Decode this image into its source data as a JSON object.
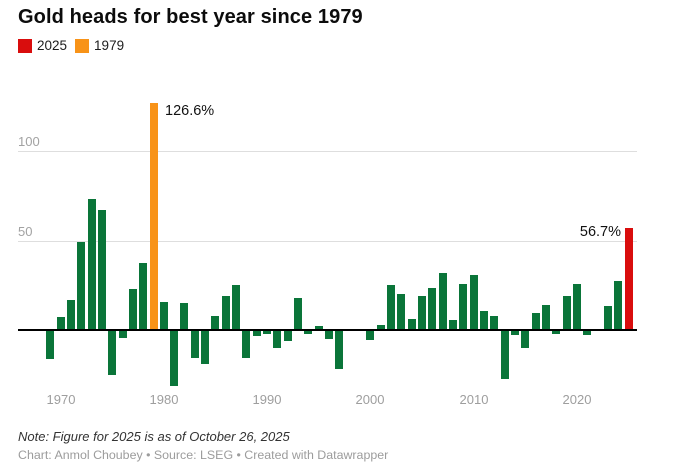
{
  "title": "Gold heads for best year since 1979",
  "legend": [
    {
      "label": "2025",
      "color": "#d90d0d"
    },
    {
      "label": "1979",
      "color": "#f89318"
    }
  ],
  "note": "Note: Figure for 2025 is as of October 26, 2025",
  "credit": "Chart: Anmol Choubey • Source: LSEG • Created with Datawrapper",
  "chart_data": {
    "type": "bar",
    "title": "Gold heads for best year since 1979",
    "xlabel": "",
    "ylabel": "",
    "value_suffix": "%",
    "ylim": [
      -35,
      135
    ],
    "grid": "horizontal",
    "y_ticks": [
      50,
      100
    ],
    "x_ticks": [
      1970,
      1980,
      1990,
      2000,
      2010,
      2020
    ],
    "bar_color_default": "#0a7539",
    "highlight_colors": {
      "1979": "#f89318",
      "2025": "#d90d0d"
    },
    "annotations": [
      {
        "year": 1979,
        "text": "126.6%",
        "side": "right"
      },
      {
        "year": 2025,
        "text": "56.7%",
        "side": "left"
      }
    ],
    "years": [
      1969,
      1970,
      1971,
      1972,
      1973,
      1974,
      1975,
      1976,
      1977,
      1978,
      1979,
      1980,
      1981,
      1982,
      1983,
      1984,
      1985,
      1986,
      1987,
      1988,
      1989,
      1990,
      1991,
      1992,
      1993,
      1994,
      1995,
      1996,
      1997,
      1998,
      1999,
      2000,
      2001,
      2002,
      2003,
      2004,
      2005,
      2006,
      2007,
      2008,
      2009,
      2010,
      2011,
      2012,
      2013,
      2014,
      2015,
      2016,
      2017,
      2018,
      2019,
      2020,
      2021,
      2022,
      2023,
      2024,
      2025
    ],
    "values": [
      -15.7,
      6.9,
      16.4,
      48.7,
      72.9,
      66.5,
      -24.8,
      -4.2,
      22.9,
      37.2,
      126.6,
      15.1,
      -31.0,
      14.8,
      -15.6,
      -18.7,
      7.3,
      18.6,
      24.9,
      -15.2,
      -2.8,
      -1.9,
      -9.8,
      -5.9,
      17.6,
      -2.0,
      1.9,
      -4.7,
      -21.5,
      -0.3,
      0.3,
      -5.5,
      2.7,
      24.9,
      19.9,
      5.8,
      18.5,
      23.0,
      31.5,
      5.5,
      25.5,
      30.5,
      10.6,
      7.4,
      -27.2,
      -2.3,
      -9.9,
      9.0,
      13.9,
      -1.9,
      18.9,
      25.4,
      -2.6,
      -0.3,
      13.4,
      27.3,
      56.7
    ]
  }
}
